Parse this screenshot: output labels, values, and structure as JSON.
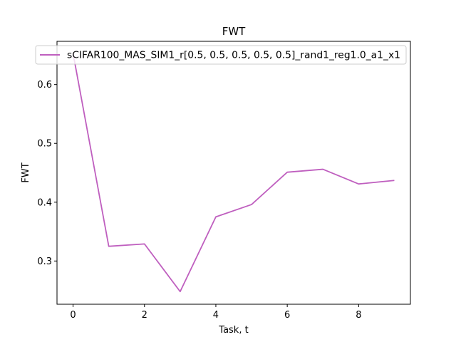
{
  "chart_data": {
    "type": "line",
    "title": "FWT",
    "xlabel": "Task, t",
    "ylabel": "FWT",
    "xlim": [
      -0.45,
      9.45
    ],
    "ylim": [
      0.2265,
      0.6735
    ],
    "xticks": [
      0,
      2,
      4,
      6,
      8
    ],
    "yticks": [
      0.3,
      0.4,
      0.5,
      0.6
    ],
    "xtick_labels": [
      "0",
      "2",
      "4",
      "6",
      "8"
    ],
    "ytick_labels": [
      "0.3",
      "0.4",
      "0.5",
      "0.6"
    ],
    "grid": false,
    "legend_position": "top-right",
    "series": [
      {
        "name": "sCIFAR100_MAS_SIM1_r[0.5, 0.5, 0.5, 0.5, 0.5]_rand1_reg1.0_a1_x1",
        "color": "#bf5fbf",
        "x": [
          0,
          1,
          2,
          3,
          4,
          5,
          6,
          7,
          8,
          9
        ],
        "y": [
          0.653,
          0.325,
          0.329,
          0.248,
          0.375,
          0.396,
          0.451,
          0.456,
          0.431,
          0.437
        ]
      }
    ]
  }
}
